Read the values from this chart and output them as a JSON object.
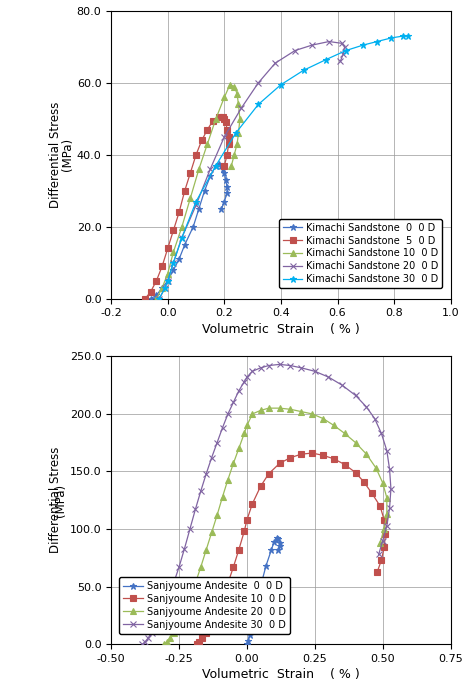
{
  "top": {
    "xlabel": "Volumetric  Strain    ( % )",
    "xlim": [
      -0.2,
      1.0
    ],
    "ylim": [
      0.0,
      80.0
    ],
    "xticks": [
      -0.2,
      0.0,
      0.2,
      0.4,
      0.6,
      0.8,
      1.0
    ],
    "yticks": [
      0.0,
      20.0,
      40.0,
      60.0,
      80.0
    ],
    "series": [
      {
        "label": "Kimachi Sandstone  0  0 D",
        "color": "#4472C4",
        "marker": "*",
        "x": [
          -0.06,
          -0.04,
          -0.02,
          0.0,
          0.02,
          0.04,
          0.06,
          0.09,
          0.11,
          0.13,
          0.15,
          0.17,
          0.18,
          0.19,
          0.195,
          0.2,
          0.205,
          0.21,
          0.21,
          0.2,
          0.19
        ],
        "y": [
          0.0,
          1.0,
          3.0,
          5.0,
          8.0,
          11.0,
          15.0,
          20.0,
          25.0,
          30.0,
          34.0,
          37.0,
          37.5,
          37.0,
          36.0,
          35.0,
          33.0,
          31.0,
          29.5,
          27.0,
          25.0
        ]
      },
      {
        "label": "Kimachi Sandstone  5  0 D",
        "color": "#C0504D",
        "marker": "s",
        "x": [
          -0.08,
          -0.06,
          -0.04,
          -0.02,
          0.0,
          0.02,
          0.04,
          0.06,
          0.08,
          0.1,
          0.12,
          0.14,
          0.16,
          0.18,
          0.195,
          0.2,
          0.205,
          0.21,
          0.215,
          0.215,
          0.21,
          0.2
        ],
        "y": [
          0.0,
          2.0,
          5.0,
          9.0,
          14.0,
          19.0,
          24.0,
          30.0,
          35.0,
          40.0,
          44.0,
          47.0,
          49.5,
          50.5,
          50.5,
          50.0,
          49.0,
          47.0,
          45.0,
          43.0,
          40.0,
          37.0
        ]
      },
      {
        "label": "Kimachi Sandstone 10  0 D",
        "color": "#9BBB59",
        "marker": "^",
        "x": [
          -0.04,
          -0.02,
          0.0,
          0.02,
          0.05,
          0.08,
          0.11,
          0.14,
          0.17,
          0.2,
          0.22,
          0.235,
          0.245,
          0.25,
          0.255,
          0.25,
          0.245,
          0.235,
          0.225
        ],
        "y": [
          0.0,
          3.0,
          7.0,
          13.0,
          20.0,
          28.0,
          36.0,
          43.0,
          50.0,
          56.0,
          59.5,
          59.0,
          57.0,
          54.0,
          50.0,
          46.0,
          43.0,
          40.0,
          37.0
        ]
      },
      {
        "label": "Kimachi Sandstone 20  0 D",
        "color": "#8064A2",
        "marker": "x",
        "x": [
          -0.03,
          -0.01,
          0.0,
          0.02,
          0.05,
          0.1,
          0.15,
          0.2,
          0.26,
          0.32,
          0.38,
          0.45,
          0.51,
          0.57,
          0.615,
          0.625,
          0.62,
          0.61
        ],
        "y": [
          0.0,
          3.0,
          5.0,
          10.0,
          17.0,
          26.0,
          36.0,
          45.0,
          53.0,
          60.0,
          65.5,
          69.0,
          70.5,
          71.5,
          71.0,
          70.0,
          68.0,
          66.0
        ]
      },
      {
        "label": "Kimachi Sandstone 30  0 D",
        "color": "#00B0F0",
        "marker": "*",
        "x": [
          -0.03,
          -0.01,
          0.0,
          0.02,
          0.05,
          0.1,
          0.17,
          0.24,
          0.32,
          0.4,
          0.48,
          0.56,
          0.63,
          0.69,
          0.74,
          0.79,
          0.83,
          0.85
        ],
        "y": [
          0.0,
          3.0,
          5.0,
          10.0,
          17.0,
          27.0,
          37.0,
          46.0,
          54.0,
          59.5,
          63.5,
          66.5,
          69.0,
          70.5,
          71.5,
          72.5,
          73.0,
          73.0
        ]
      }
    ]
  },
  "bottom": {
    "xlabel": "Volumetric  Strain    ( % )",
    "xlim": [
      -0.5,
      0.75
    ],
    "ylim": [
      0.0,
      250.0
    ],
    "xticks": [
      -0.5,
      -0.25,
      0.0,
      0.25,
      0.5,
      0.75
    ],
    "yticks": [
      0.0,
      50.0,
      100.0,
      150.0,
      200.0,
      250.0
    ],
    "series": [
      {
        "label": "Sanjyoume Andesite  0  0 D",
        "color": "#4472C4",
        "marker": "*",
        "x": [
          0.0,
          0.005,
          0.01,
          0.02,
          0.03,
          0.05,
          0.07,
          0.09,
          0.1,
          0.11,
          0.115,
          0.12,
          0.12,
          0.115
        ],
        "y": [
          0.0,
          3.0,
          8.0,
          18.0,
          30.0,
          50.0,
          68.0,
          82.0,
          89.0,
          92.0,
          91.0,
          88.0,
          85.0,
          82.0
        ]
      },
      {
        "label": "Sanjyoume Andesite 10  0 D",
        "color": "#C0504D",
        "marker": "s",
        "x": [
          -0.185,
          -0.175,
          -0.165,
          -0.15,
          -0.13,
          -0.11,
          -0.09,
          -0.07,
          -0.05,
          -0.03,
          -0.01,
          0.0,
          0.02,
          0.05,
          0.08,
          0.12,
          0.16,
          0.2,
          0.24,
          0.28,
          0.32,
          0.36,
          0.4,
          0.43,
          0.46,
          0.49,
          0.505,
          0.51,
          0.505,
          0.495,
          0.48
        ],
        "y": [
          0.0,
          2.0,
          5.0,
          10.0,
          18.0,
          28.0,
          40.0,
          53.0,
          67.0,
          82.0,
          98.0,
          108.0,
          122.0,
          137.0,
          148.0,
          157.0,
          162.0,
          165.0,
          166.0,
          164.0,
          161.0,
          156.0,
          149.0,
          141.0,
          131.0,
          120.0,
          108.0,
          96.0,
          84.0,
          73.0,
          63.0
        ]
      },
      {
        "label": "Sanjyoume Andesite 20  0 D",
        "color": "#9BBB59",
        "marker": "^",
        "x": [
          -0.305,
          -0.295,
          -0.285,
          -0.27,
          -0.25,
          -0.23,
          -0.21,
          -0.19,
          -0.17,
          -0.15,
          -0.13,
          -0.11,
          -0.09,
          -0.07,
          -0.05,
          -0.03,
          -0.01,
          0.0,
          0.02,
          0.05,
          0.08,
          0.12,
          0.16,
          0.2,
          0.24,
          0.28,
          0.32,
          0.36,
          0.4,
          0.44,
          0.475,
          0.5,
          0.515,
          0.515,
          0.505,
          0.49
        ],
        "y": [
          0.0,
          2.0,
          5.0,
          10.0,
          18.0,
          28.0,
          40.0,
          53.0,
          67.0,
          82.0,
          97.0,
          112.0,
          128.0,
          143.0,
          157.0,
          170.0,
          183.0,
          190.0,
          200.0,
          203.0,
          205.0,
          205.0,
          204.0,
          202.0,
          200.0,
          196.0,
          190.0,
          183.0,
          175.0,
          165.0,
          153.0,
          140.0,
          127.0,
          113.0,
          100.0,
          88.0
        ]
      },
      {
        "label": "Sanjyoume Andesite 30  0 D",
        "color": "#8064A2",
        "marker": "x",
        "x": [
          -0.385,
          -0.375,
          -0.365,
          -0.35,
          -0.33,
          -0.31,
          -0.29,
          -0.27,
          -0.25,
          -0.23,
          -0.21,
          -0.19,
          -0.17,
          -0.15,
          -0.13,
          -0.11,
          -0.09,
          -0.07,
          -0.05,
          -0.03,
          -0.01,
          0.0,
          0.02,
          0.05,
          0.08,
          0.12,
          0.16,
          0.2,
          0.25,
          0.3,
          0.35,
          0.4,
          0.44,
          0.47,
          0.495,
          0.515,
          0.525,
          0.53,
          0.525,
          0.515,
          0.5,
          0.485
        ],
        "y": [
          0.0,
          2.0,
          5.0,
          10.0,
          18.0,
          28.0,
          40.0,
          53.0,
          67.0,
          83.0,
          100.0,
          117.0,
          133.0,
          148.0,
          162.0,
          175.0,
          188.0,
          200.0,
          210.0,
          220.0,
          228.0,
          232.0,
          237.0,
          240.0,
          242.0,
          243.0,
          242.0,
          240.0,
          237.0,
          232.0,
          225.0,
          216.0,
          206.0,
          196.0,
          183.0,
          168.0,
          152.0,
          135.0,
          118.0,
          103.0,
          90.0,
          78.0
        ]
      }
    ]
  }
}
